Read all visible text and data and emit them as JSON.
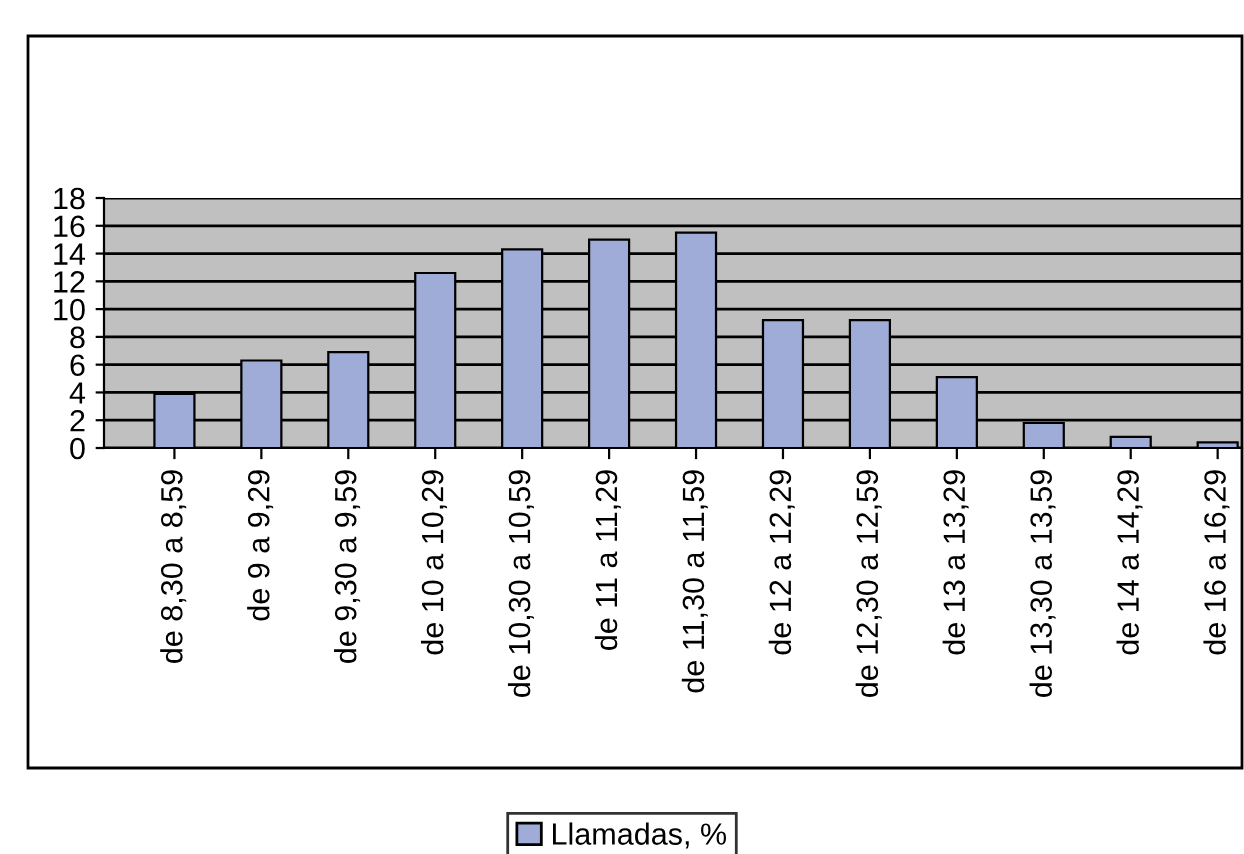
{
  "chart_data": {
    "type": "bar",
    "categories": [
      "de 8,30 a 8,59",
      "de 9 a 9,29",
      "de 9,30 a 9,59",
      "de 10 a 10,29",
      "de 10,30 a 10,59",
      "de 11 a 11,29",
      "de 11,30 a 11,59",
      "de 12 a 12,29",
      "de 12,30 a 12,59",
      "de 13 a 13,29",
      "de 13,30 a 13,59",
      "de 14 a 14,29",
      "de 16 a 16,29"
    ],
    "series": [
      {
        "name": "Llamadas, %",
        "color": "#a0acd8",
        "values": [
          3.9,
          6.3,
          6.9,
          12.6,
          14.3,
          15.0,
          15.5,
          9.2,
          9.2,
          5.1,
          1.8,
          0.8,
          0.4
        ]
      }
    ],
    "ylim": [
      0,
      18
    ],
    "yticks": [
      0,
      2,
      4,
      6,
      8,
      10,
      12,
      14,
      16,
      18
    ],
    "grid": "y",
    "legend": "bottom"
  }
}
